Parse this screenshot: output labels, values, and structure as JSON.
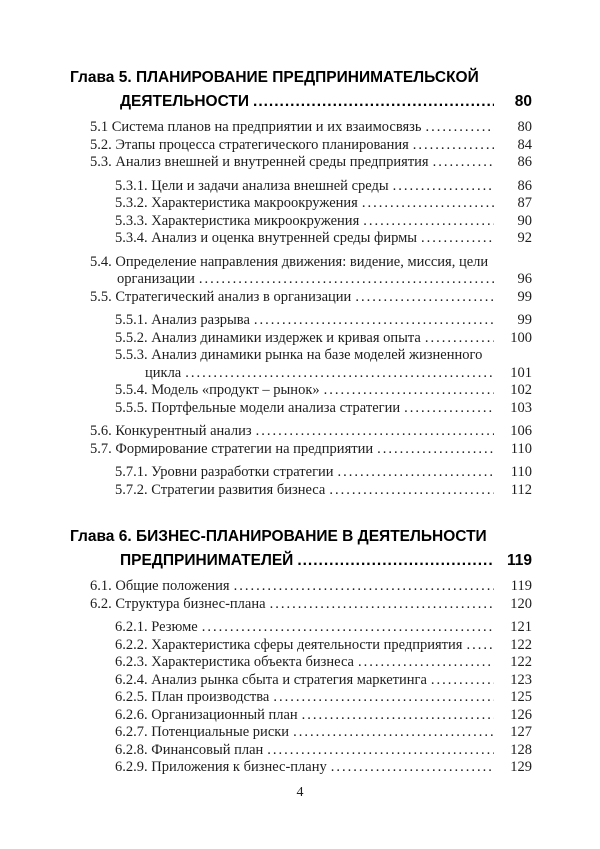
{
  "page": {
    "footer_page_number": "4"
  },
  "colors": {
    "background": "#ffffff",
    "text": "#1d1d1d",
    "heading_text": "#000000"
  },
  "toc": {
    "sections": [
      {
        "name": "chapter-5",
        "heading": {
          "line1": "Глава 5. ПЛАНИРОВАНИЕ ПРЕДПРИНИМАТЕЛЬСКОЙ",
          "line2": "ДЕЯТЕЛЬНОСТИ",
          "page": "80"
        },
        "entries": [
          {
            "level": 1,
            "lines": [
              "5.1 Система планов на предприятии и их взаимосвязь"
            ],
            "page": "80"
          },
          {
            "level": 1,
            "lines": [
              "5.2. Этапы процесса стратегического планирования"
            ],
            "page": "84"
          },
          {
            "level": 1,
            "lines": [
              "5.3. Анализ внешней и внутренней среды предприятия"
            ],
            "page": "86"
          },
          {
            "level": 2,
            "lines": [
              "5.3.1. Цели и задачи анализа внешней среды"
            ],
            "page": "86"
          },
          {
            "level": 2,
            "lines": [
              "5.3.2. Характеристика макроокружения"
            ],
            "page": "87"
          },
          {
            "level": 2,
            "lines": [
              "5.3.3. Характеристика микроокружения"
            ],
            "page": "90"
          },
          {
            "level": 2,
            "lines": [
              "5.3.4. Анализ и оценка внутренней среды фирмы"
            ],
            "page": "92"
          },
          {
            "level": 1,
            "lines": [
              "5.4. Определение направления движения: видение, миссия, цели",
              "организации"
            ],
            "page": "96"
          },
          {
            "level": 1,
            "lines": [
              "5.5. Стратегический анализ в организации"
            ],
            "page": "99"
          },
          {
            "level": 2,
            "lines": [
              "5.5.1. Анализ разрыва"
            ],
            "page": "99"
          },
          {
            "level": 2,
            "lines": [
              "5.5.2. Анализ динамики издержек и кривая опыта"
            ],
            "page": "100"
          },
          {
            "level": 2,
            "lines": [
              "5.5.3. Анализ динамики рынка на базе моделей жизненного",
              "цикла"
            ],
            "page": "101"
          },
          {
            "level": 2,
            "lines": [
              "5.5.4. Модель «продукт – рынок»"
            ],
            "page": "102"
          },
          {
            "level": 2,
            "lines": [
              "5.5.5. Портфельные модели анализа стратегии"
            ],
            "page": "103"
          },
          {
            "level": 1,
            "lines": [
              "5.6. Конкурентный анализ"
            ],
            "page": "106"
          },
          {
            "level": 1,
            "lines": [
              "5.7. Формирование стратегии на предприятии"
            ],
            "page": "110"
          },
          {
            "level": 2,
            "lines": [
              "5.7.1. Уровни разработки стратегии"
            ],
            "page": "110"
          },
          {
            "level": 2,
            "lines": [
              "5.7.2. Стратегии развития бизнеса"
            ],
            "page": "112"
          }
        ]
      },
      {
        "name": "chapter-6",
        "heading": {
          "line1": "Глава 6. БИЗНЕС-ПЛАНИРОВАНИЕ В ДЕЯТЕЛЬНОСТИ",
          "line2": "ПРЕДПРИНИМАТЕЛЕЙ",
          "page": "119"
        },
        "entries": [
          {
            "level": 1,
            "lines": [
              "6.1. Общие положения"
            ],
            "page": "119"
          },
          {
            "level": 1,
            "lines": [
              "6.2. Структура бизнес-плана"
            ],
            "page": "120"
          },
          {
            "level": 2,
            "lines": [
              "6.2.1. Резюме"
            ],
            "page": "121"
          },
          {
            "level": 2,
            "lines": [
              "6.2.2. Характеристика сферы деятельности предприятия"
            ],
            "page": "122"
          },
          {
            "level": 2,
            "lines": [
              "6.2.3. Характеристика объекта бизнеса"
            ],
            "page": "122"
          },
          {
            "level": 2,
            "lines": [
              "6.2.4. Анализ рынка сбыта и стратегия маркетинга"
            ],
            "page": "123"
          },
          {
            "level": 2,
            "lines": [
              "6.2.5. План производства"
            ],
            "page": "125"
          },
          {
            "level": 2,
            "lines": [
              "6.2.6. Организационный план"
            ],
            "page": "126"
          },
          {
            "level": 2,
            "lines": [
              "6.2.7. Потенциальные риски"
            ],
            "page": "127"
          },
          {
            "level": 2,
            "lines": [
              "6.2.8. Финансовый план"
            ],
            "page": "128"
          },
          {
            "level": 2,
            "lines": [
              "6.2.9. Приложения к бизнес-плану"
            ],
            "page": "129"
          }
        ]
      }
    ]
  }
}
